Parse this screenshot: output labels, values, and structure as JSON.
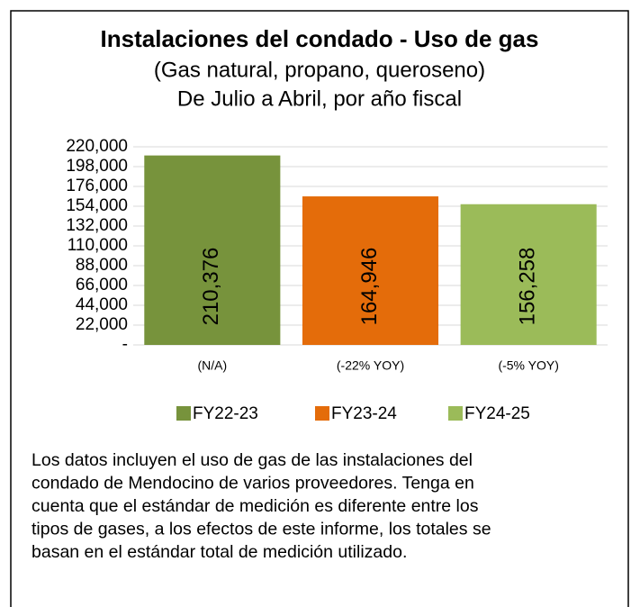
{
  "chart_data": {
    "type": "bar",
    "title": "Instalaciones del condado - Uso de gas",
    "subtitle": [
      "(Gas natural, propano, queroseno)",
      "De Julio a Abril, por año fiscal"
    ],
    "categories": [
      "(N/A)",
      "(-22% YOY)",
      "(-5% YOY)"
    ],
    "series": [
      {
        "name": "FY22-23",
        "color": "#77933c",
        "values": [
          210376,
          null,
          null
        ],
        "value_labels": [
          "210,376",
          null,
          null
        ]
      },
      {
        "name": "FY23-24",
        "color": "#e46c0a",
        "values": [
          null,
          164946,
          null
        ],
        "value_labels": [
          null,
          "164,946",
          null
        ]
      },
      {
        "name": "FY24-25",
        "color": "#9bbb59",
        "values": [
          null,
          null,
          156258
        ],
        "value_labels": [
          null,
          null,
          "156,258"
        ]
      }
    ],
    "ylim": [
      0,
      220000
    ],
    "yticks": [
      {
        "value": 0,
        "label": "-"
      },
      {
        "value": 22000,
        "label": "22,000"
      },
      {
        "value": 44000,
        "label": "44,000"
      },
      {
        "value": 66000,
        "label": "66,000"
      },
      {
        "value": 88000,
        "label": "88,000"
      },
      {
        "value": 110000,
        "label": "110,000"
      },
      {
        "value": 132000,
        "label": "132,000"
      },
      {
        "value": 154000,
        "label": "154,000"
      },
      {
        "value": 176000,
        "label": "176,000"
      },
      {
        "value": 198000,
        "label": "198,000"
      },
      {
        "value": 220000,
        "label": "220,000"
      }
    ],
    "grid": true,
    "legend": "bottom"
  },
  "note": [
    "Los datos incluyen el uso de gas de las instalaciones del",
    "condado de Mendocino de varios proveedores.  Tenga en",
    "cuenta que el estándar de medición es diferente entre los",
    "tipos de gases, a los efectos de este informe, los totales se",
    "basan en el estándar total de medición utilizado."
  ]
}
